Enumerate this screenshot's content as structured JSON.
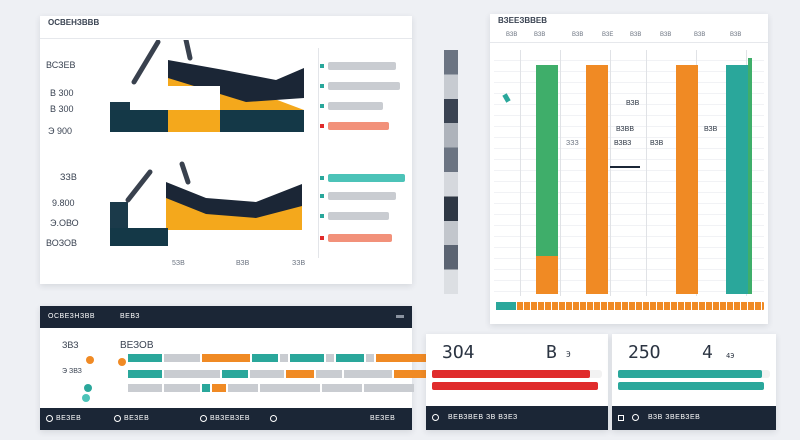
{
  "colors": {
    "navy": "#1b2636",
    "orange": "#f08a24",
    "amber": "#f4a81c",
    "teal": "#2aa79b",
    "green": "#3fae6a",
    "red": "#e02b2b",
    "salmon": "#f2917a",
    "gray": "#c9ccd1",
    "aqua": "#4cc3b8"
  },
  "top_left_panel": {
    "title": "ОСВЕНЗВВВ",
    "chart1": {
      "yticks": [
        "ВСЗЕВ",
        "В 300",
        "В 300",
        "Э 900"
      ],
      "legend_values": [
        0.62,
        0.65,
        0.5,
        0.55
      ],
      "legend_icons": [
        "teal-marker-icon",
        "teal-marker-icon",
        "teal-marker-icon",
        "red-marker-icon"
      ]
    },
    "chart2": {
      "yticks": [
        "ЗЗВ",
        "9.800",
        "Э.ОВО",
        "ВОЗОВ"
      ],
      "xticks": [
        "5ЗВ",
        "ВЗВ",
        "ЗЗВ"
      ],
      "legend_values": [
        0.7,
        0.62,
        0.55,
        0.58
      ],
      "legend_icons": [
        "teal-marker-icon",
        "teal-marker-icon",
        "teal-marker-icon",
        "red-marker-icon"
      ]
    }
  },
  "top_right_panel": {
    "title": "ВЗЕЕЗВВЕВ",
    "labels": [
      "ВЗВ",
      "ВЗВ",
      "ВЗВ",
      "ВЗЕ",
      "ВЗВ",
      "ВЗВ",
      "ВЗВ",
      "ВЗВ"
    ],
    "label2": [
      "ВЗВ",
      "ЗЗЗ",
      "ВЗВВ",
      "ВЗВЗ",
      "ВЗВ",
      "ВЗВ"
    ],
    "column_levels": [
      0.97,
      0.97,
      0.97,
      0.97
    ]
  },
  "bottom_left_panel": {
    "title": "ОСВЕЗНЗВВ",
    "subtitle": "ВЕВЗ",
    "label1": "ЗВЗ",
    "label2": "ВЕЗОВ",
    "label3": "Э ЗВЗ",
    "footer_items": [
      "ВЕЗЕВ",
      "ВЕЗЕВ",
      "ВВЗЕВЗЕВ",
      "ВЕЗЕВ"
    ]
  },
  "bottom_mid_panel": {
    "value": "ЗО4",
    "unit": "В",
    "unit_small": "Э",
    "progress": 0.93,
    "footer": "ВЕВЗВЕВ ЗВ ВЗЕЗ"
  },
  "bottom_right_panel": {
    "value": "25О",
    "unit": "4",
    "unit_small": "4Э",
    "progress": 0.95,
    "footer": "ВЗВ ЗВЕВЗЕВ"
  }
}
